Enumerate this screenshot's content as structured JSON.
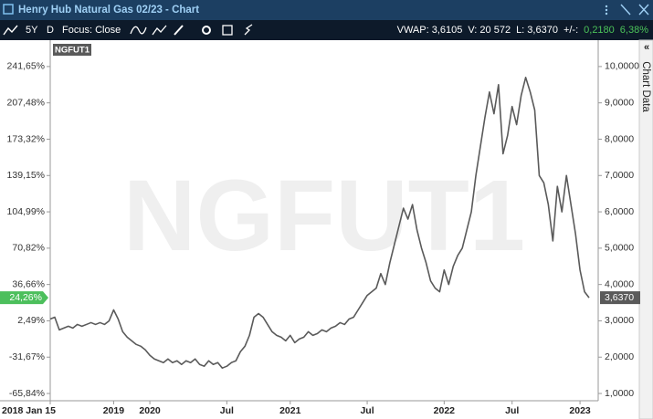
{
  "window": {
    "title": "Henry Hub Natural Gas 02/23 - Chart"
  },
  "toolbar": {
    "period": "5Y",
    "interval": "D",
    "focus": "Focus: Close",
    "stats": [
      "VWAP: 3,6105",
      "V: 20 572",
      "L: 3,6370",
      "+/-:"
    ],
    "change": [
      "0,2180",
      "6,38%"
    ]
  },
  "side_tab": "Chart Data",
  "chart_data": {
    "type": "line",
    "watermark": "NGFUT1",
    "categories": [
      "2018 Jan 15",
      null,
      null,
      null,
      null,
      null,
      null,
      null,
      null,
      null,
      null,
      null,
      null,
      null,
      "2019",
      null,
      null,
      null,
      null,
      null,
      null,
      null,
      "2020",
      null,
      null,
      null,
      null,
      null,
      null,
      null,
      null,
      null,
      null,
      null,
      null,
      null,
      null,
      null,
      null,
      "Jul",
      null,
      null,
      null,
      null,
      null,
      null,
      null,
      null,
      null,
      null,
      null,
      null,
      null,
      "2021",
      null,
      null,
      null,
      null,
      null,
      null,
      null,
      null,
      null,
      null,
      null,
      null,
      null,
      null,
      null,
      null,
      "Jul",
      null,
      null,
      null,
      null,
      null,
      null,
      null,
      null,
      null,
      null,
      null,
      null,
      null,
      null,
      null,
      null,
      "2022",
      null,
      null,
      null,
      null,
      null,
      null,
      null,
      null,
      null,
      null,
      null,
      null,
      null,
      null,
      "Jul",
      null,
      null,
      null,
      null,
      null,
      null,
      null,
      null,
      null,
      null,
      null,
      null,
      null,
      null,
      "2023",
      null,
      null
    ],
    "series": [
      {
        "name": "NGFUT1",
        "color": "#5a5a5a",
        "values": [
          3.05,
          3.1,
          2.75,
          2.8,
          2.85,
          2.8,
          2.9,
          2.85,
          2.9,
          2.95,
          2.9,
          2.95,
          2.9,
          3.0,
          3.3,
          3.05,
          2.7,
          2.55,
          2.45,
          2.35,
          2.3,
          2.2,
          2.05,
          1.95,
          1.9,
          1.85,
          1.95,
          1.85,
          1.9,
          1.8,
          1.9,
          1.85,
          1.95,
          1.8,
          1.75,
          1.9,
          1.8,
          1.85,
          1.7,
          1.75,
          1.85,
          1.9,
          2.15,
          2.3,
          2.6,
          3.1,
          3.2,
          3.1,
          2.9,
          2.7,
          2.6,
          2.55,
          2.45,
          2.6,
          2.4,
          2.5,
          2.55,
          2.7,
          2.6,
          2.65,
          2.75,
          2.7,
          2.8,
          2.85,
          2.95,
          2.9,
          3.05,
          3.1,
          3.3,
          3.5,
          3.7,
          3.8,
          3.9,
          4.3,
          4.0,
          4.6,
          5.1,
          5.6,
          6.1,
          5.8,
          6.2,
          5.5,
          5.0,
          4.6,
          4.1,
          3.9,
          3.8,
          4.4,
          4.0,
          4.5,
          4.8,
          5.0,
          5.5,
          6.0,
          7.0,
          7.8,
          8.6,
          9.3,
          8.7,
          9.5,
          7.6,
          8.1,
          8.9,
          8.4,
          9.2,
          9.7,
          9.3,
          8.8,
          7.0,
          6.8,
          6.2,
          5.2,
          6.7,
          6.0,
          7.0,
          6.2,
          5.4,
          4.4,
          3.8,
          3.637
        ]
      }
    ],
    "ylim": [
      0.8,
      10.6
    ],
    "yticks": [
      {
        "value": 1,
        "label": "1,0000"
      },
      {
        "value": 2,
        "label": "2,0000"
      },
      {
        "value": 3,
        "label": "3,0000"
      },
      {
        "value": 4,
        "label": "4,0000"
      },
      {
        "value": 5,
        "label": "5,0000"
      },
      {
        "value": 6,
        "label": "6,0000"
      },
      {
        "value": 7,
        "label": "7,0000"
      },
      {
        "value": 8,
        "label": "8,0000"
      },
      {
        "value": 9,
        "label": "9,0000"
      },
      {
        "value": 10,
        "label": "10,0000"
      }
    ],
    "y2lim": [
      -72.67,
      262.15
    ],
    "y2ticks": [
      {
        "value": 241.65,
        "label": "241,65%"
      },
      {
        "value": 207.48,
        "label": "207,48%"
      },
      {
        "value": 173.32,
        "label": "173,32%"
      },
      {
        "value": 139.15,
        "label": "139,15%"
      },
      {
        "value": 104.99,
        "label": "104,99%"
      },
      {
        "value": 70.82,
        "label": "70,82%"
      },
      {
        "value": 36.66,
        "label": "36,66%"
      },
      {
        "value": 2.49,
        "label": "2,49%"
      },
      {
        "value": -31.67,
        "label": "-31,67%"
      },
      {
        "value": -65.84,
        "label": "-65,84%"
      }
    ],
    "last_price": {
      "value": 3.637,
      "label": "3,6370"
    },
    "last_change": {
      "value": 24.26,
      "label": "24,26%"
    },
    "grid": false
  }
}
